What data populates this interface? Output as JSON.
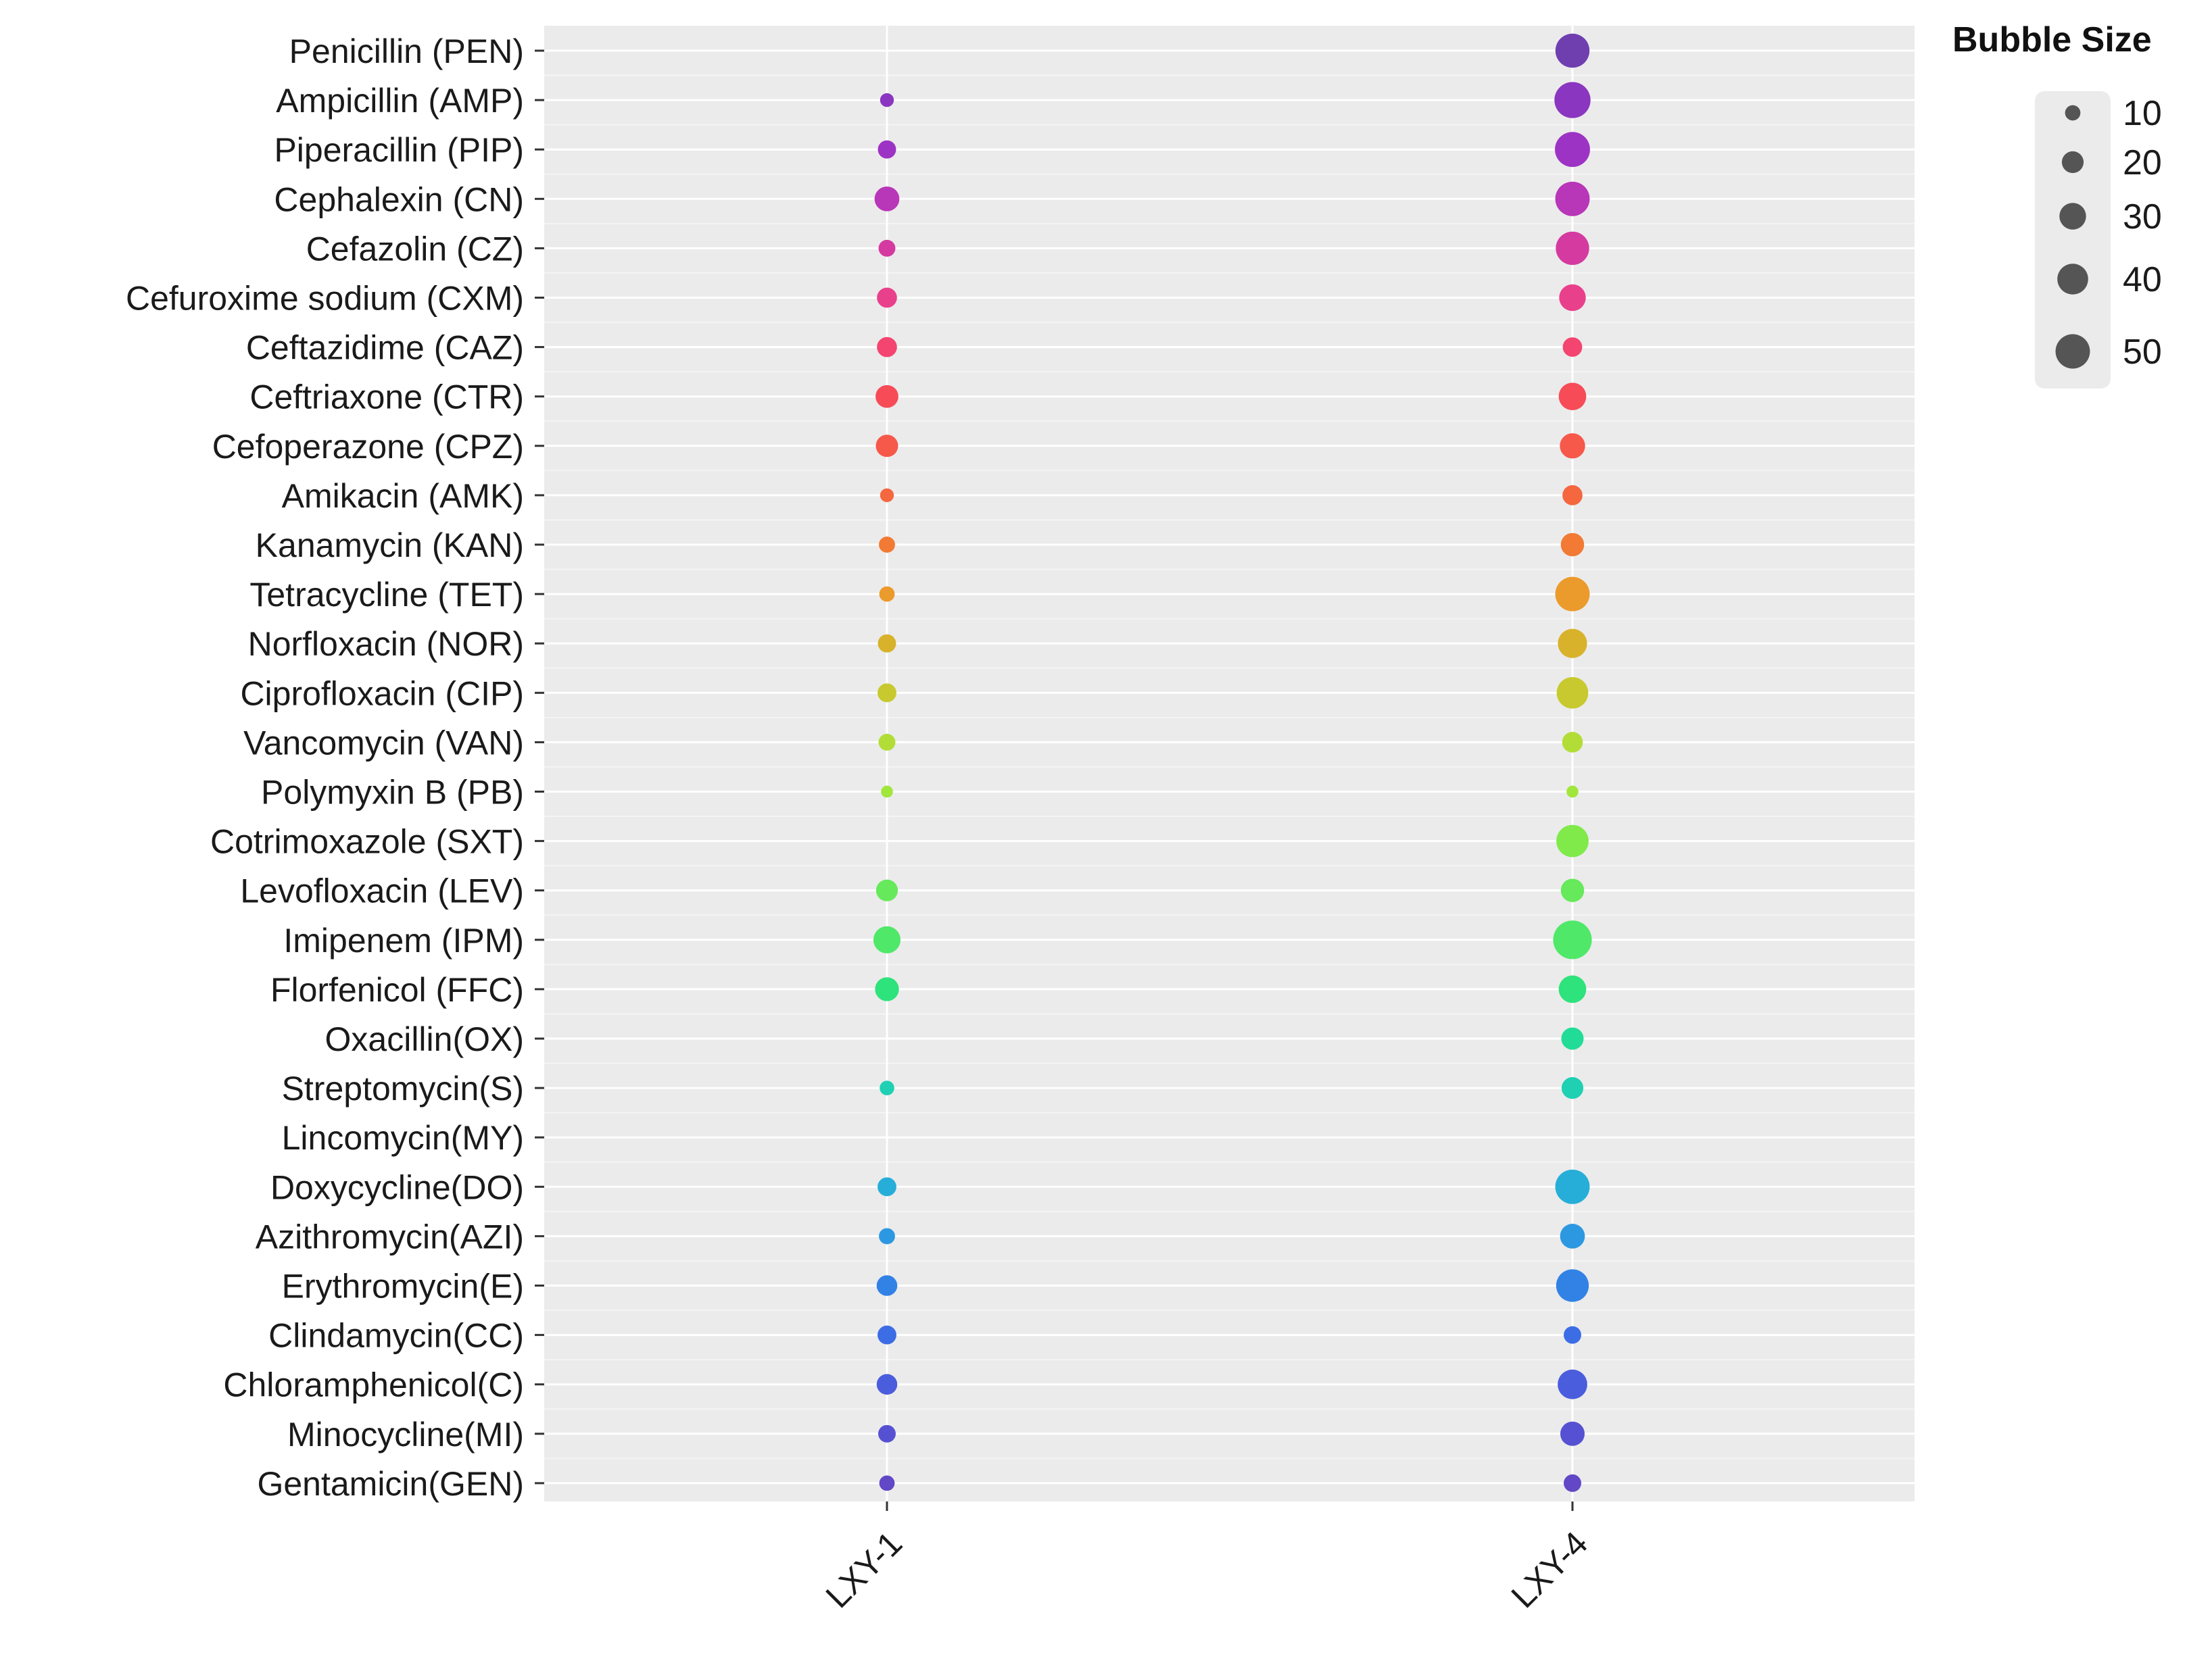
{
  "chart_data": {
    "type": "scatter",
    "subtype": "bubble",
    "title": "",
    "xlabel": "",
    "ylabel": "",
    "categories_x": [
      "LXY-1",
      "LXY-4"
    ],
    "categories_y": [
      "Penicillin (PEN)",
      "Ampicillin (AMP)",
      "Piperacillin (PIP)",
      "Cephalexin (CN)",
      "Cefazolin (CZ)",
      "Cefuroxime sodium (CXM)",
      "Ceftazidime (CAZ)",
      "Ceftriaxone (CTR)",
      "Cefoperazone (CPZ)",
      "Amikacin (AMK)",
      "Kanamycin (KAN)",
      "Tetracycline (TET)",
      "Norfloxacin (NOR)",
      "Ciprofloxacin (CIP)",
      "Vancomycin (VAN)",
      "Polymyxin B (PB)",
      "Cotrimoxazole (SXT)",
      "Levofloxacin (LEV)",
      "Imipenem (IPM)",
      "Florfenicol (FFC)",
      "Oxacillin(OX)",
      "Streptomycin(S)",
      "Lincomycin(MY)",
      "Doxycycline(DO)",
      "Azithromycin(AZI)",
      "Erythromycin(E)",
      "Clindamycin(CC)",
      "Chloramphenicol(C)",
      "Minocycline(MI)",
      "Gentamicin(GEN)"
    ],
    "series": [
      {
        "name": "LXY-1",
        "values": [
          0,
          8,
          14,
          26,
          12,
          17,
          17,
          22,
          21,
          8,
          11,
          10,
          14,
          15,
          12,
          6,
          0,
          20,
          31,
          24,
          0,
          9,
          0,
          15,
          11,
          18,
          15,
          18,
          13,
          10
        ]
      },
      {
        "name": "LXY-4",
        "values": [
          49,
          55,
          52,
          50,
          47,
          30,
          16,
          32,
          27,
          17,
          23,
          50,
          36,
          42,
          18,
          6,
          44,
          23,
          63,
          32,
          21,
          20,
          0,
          50,
          26,
          45,
          13,
          37,
          25,
          13
        ]
      }
    ],
    "colors": [
      "#6f3fb0",
      "#8a36c0",
      "#9d33c4",
      "#b836b8",
      "#d43aa0",
      "#e9408c",
      "#f34570",
      "#f74b58",
      "#f6584a",
      "#f4673f",
      "#f27a34",
      "#eb9a2c",
      "#d8b22a",
      "#c7c92e",
      "#b2dd37",
      "#a0e63b",
      "#7fea4a",
      "#66e95a",
      "#4fe868",
      "#2ee27c",
      "#21dc96",
      "#1fd0b3",
      "#22c4c4",
      "#26aed8",
      "#2d98e2",
      "#3282e6",
      "#3c6de4",
      "#4a5ddc",
      "#5651d2",
      "#6247c6"
    ],
    "legend": {
      "title": "Bubble Size",
      "placement": "right",
      "entries": [
        {
          "label": "10",
          "value": 10
        },
        {
          "label": "20",
          "value": 20
        },
        {
          "label": "30",
          "value": 30
        },
        {
          "label": "40",
          "value": 40
        },
        {
          "label": "50",
          "value": 50
        }
      ]
    },
    "grid": true,
    "x_tick_rotation": "45 degrees"
  }
}
